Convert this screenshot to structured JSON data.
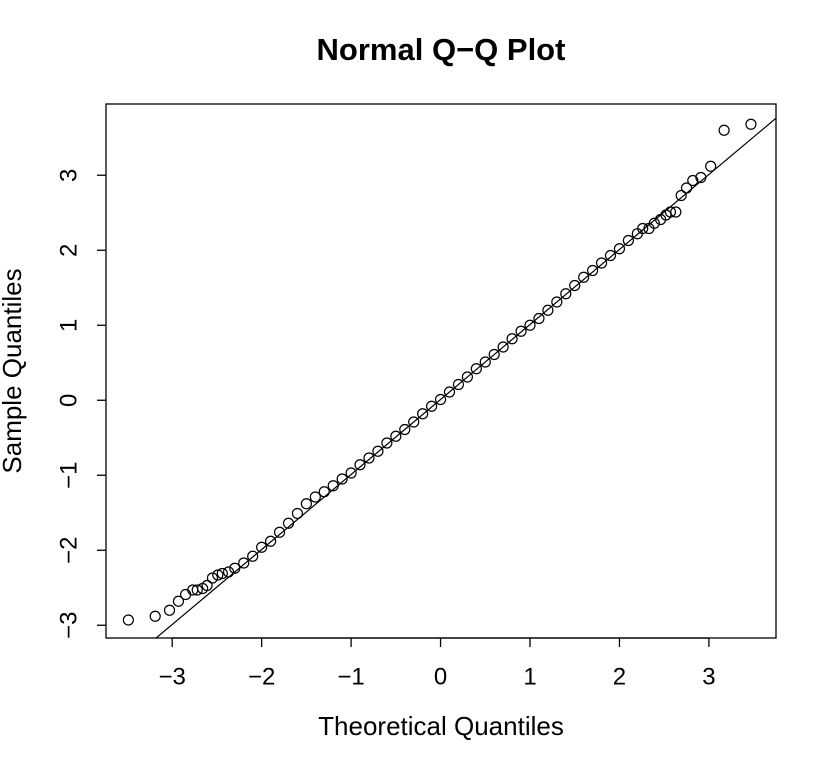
{
  "chart_data": {
    "type": "scatter",
    "title": "Normal Q−Q Plot",
    "x_label": "Theoretical Quantiles",
    "y_label": "Sample Quantiles",
    "xlim": [
      -3.74,
      3.75
    ],
    "ylim": [
      -3.17,
      3.95
    ],
    "xticks": [
      {
        "value": -3,
        "label": "−3"
      },
      {
        "value": -2,
        "label": "−2"
      },
      {
        "value": -1,
        "label": "−1"
      },
      0,
      1,
      2,
      3
    ],
    "yticks": [
      {
        "value": -3,
        "label": "−3"
      },
      {
        "value": -2,
        "label": "−2"
      },
      {
        "value": -1,
        "label": "−1"
      },
      0,
      1,
      2,
      3
    ],
    "color": "#000000",
    "x": [
      -3.49,
      -3.19,
      -3.03,
      -2.93,
      -2.85,
      -2.77,
      -2.72,
      -2.66,
      -2.61,
      -2.55,
      -2.49,
      -2.44,
      -2.37,
      -2.3,
      -2.2,
      -2.1,
      -2.0,
      -1.9,
      -1.8,
      -1.7,
      -1.6,
      -1.5,
      -1.4,
      -1.3,
      -1.2,
      -1.1,
      -1.0,
      -0.9,
      -0.8,
      -0.7,
      -0.6,
      -0.5,
      -0.4,
      -0.3,
      -0.2,
      -0.1,
      0,
      0.1,
      0.2,
      0.3,
      0.4,
      0.5,
      0.6,
      0.7,
      0.8,
      0.9,
      1.0,
      1.1,
      1.2,
      1.3,
      1.4,
      1.5,
      1.6,
      1.7,
      1.8,
      1.9,
      2.0,
      2.1,
      2.2,
      2.26,
      2.33,
      2.39,
      2.46,
      2.52,
      2.57,
      2.63,
      2.69,
      2.75,
      2.82,
      2.91,
      3.02,
      3.17,
      3.47
    ],
    "values": [
      -2.93,
      -2.88,
      -2.8,
      -2.68,
      -2.59,
      -2.53,
      -2.53,
      -2.51,
      -2.47,
      -2.37,
      -2.33,
      -2.31,
      -2.29,
      -2.24,
      -2.17,
      -2.08,
      -1.96,
      -1.88,
      -1.76,
      -1.64,
      -1.51,
      -1.38,
      -1.29,
      -1.22,
      -1.14,
      -1.05,
      -0.97,
      -0.86,
      -0.77,
      -0.68,
      -0.57,
      -0.48,
      -0.39,
      -0.29,
      -0.18,
      -0.08,
      0.01,
      0.11,
      0.21,
      0.31,
      0.42,
      0.51,
      0.61,
      0.71,
      0.82,
      0.92,
      1.0,
      1.09,
      1.2,
      1.31,
      1.42,
      1.53,
      1.64,
      1.73,
      1.83,
      1.93,
      2.02,
      2.13,
      2.22,
      2.29,
      2.29,
      2.36,
      2.41,
      2.47,
      2.51,
      2.51,
      2.73,
      2.83,
      2.93,
      2.97,
      3.12,
      3.6,
      3.68
    ],
    "reference_line": {
      "x": [
        -3.18,
        3.75
      ],
      "y": [
        -3.17,
        3.76
      ]
    }
  }
}
